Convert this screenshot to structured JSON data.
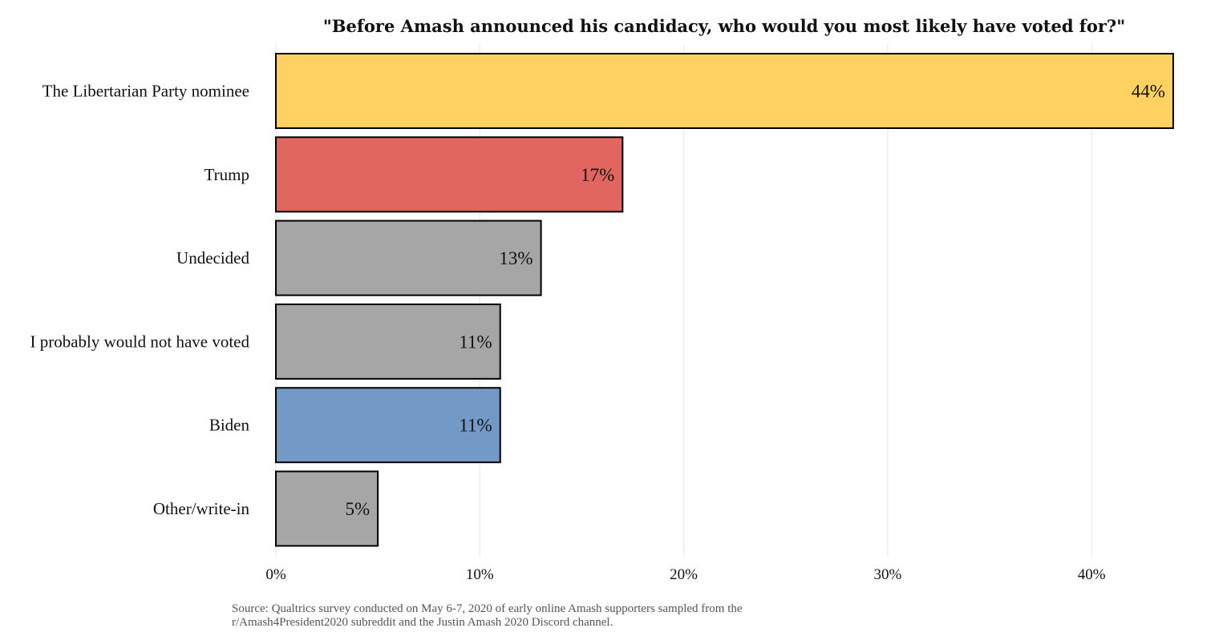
{
  "chart_data": {
    "type": "bar",
    "orientation": "horizontal",
    "title": "\"Before Amash announced his candidacy, who would you most likely have voted for?\"",
    "xlabel": "",
    "ylabel": "",
    "xlim": [
      0,
      44
    ],
    "x_ticks": [
      0,
      10,
      20,
      30,
      40
    ],
    "x_tick_labels": [
      "0%",
      "10%",
      "20%",
      "30%",
      "40%"
    ],
    "grid": "vertical",
    "legend": "none",
    "categories": [
      "The Libertarian Party nominee",
      "Trump",
      "Undecided",
      "I probably would not have voted",
      "Biden",
      "Other/write-in"
    ],
    "values": [
      44,
      17,
      13,
      11,
      11,
      5
    ],
    "value_labels": [
      "44%",
      "17%",
      "13%",
      "11%",
      "11%",
      "5%"
    ],
    "colors": [
      "#FFD162",
      "#E0665F",
      "#A6A6A6",
      "#A6A6A6",
      "#7399C6",
      "#A6A6A6"
    ]
  },
  "source_lines": [
    "Source: Qualtrics survey conducted on May 6-7, 2020 of early online Amash supporters sampled from the",
    "r/Amash4President2020 subreddit and the Justin Amash 2020 Discord channel."
  ]
}
